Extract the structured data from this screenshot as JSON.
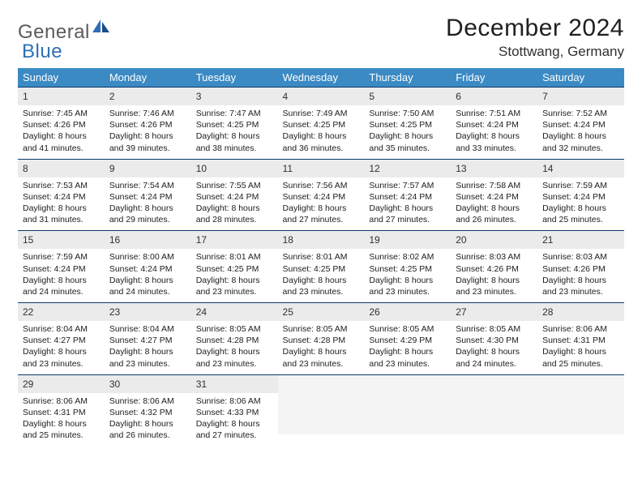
{
  "logo": {
    "part1": "General",
    "part2": "Blue"
  },
  "title": "December 2024",
  "location": "Stottwang, Germany",
  "day_headers": [
    "Sunday",
    "Monday",
    "Tuesday",
    "Wednesday",
    "Thursday",
    "Friday",
    "Saturday"
  ],
  "colors": {
    "header_bg": "#3b8ac4",
    "header_text": "#ffffff",
    "rule": "#0a3a6a",
    "daynum_bg": "#ebebeb",
    "empty_bg": "#f4f4f4",
    "logo_gray": "#5a5a5a",
    "logo_blue": "#2e6fb5"
  },
  "weeks": [
    [
      {
        "n": "1",
        "sr": "7:45 AM",
        "ss": "4:26 PM",
        "dl": "8 hours and 41 minutes."
      },
      {
        "n": "2",
        "sr": "7:46 AM",
        "ss": "4:26 PM",
        "dl": "8 hours and 39 minutes."
      },
      {
        "n": "3",
        "sr": "7:47 AM",
        "ss": "4:25 PM",
        "dl": "8 hours and 38 minutes."
      },
      {
        "n": "4",
        "sr": "7:49 AM",
        "ss": "4:25 PM",
        "dl": "8 hours and 36 minutes."
      },
      {
        "n": "5",
        "sr": "7:50 AM",
        "ss": "4:25 PM",
        "dl": "8 hours and 35 minutes."
      },
      {
        "n": "6",
        "sr": "7:51 AM",
        "ss": "4:24 PM",
        "dl": "8 hours and 33 minutes."
      },
      {
        "n": "7",
        "sr": "7:52 AM",
        "ss": "4:24 PM",
        "dl": "8 hours and 32 minutes."
      }
    ],
    [
      {
        "n": "8",
        "sr": "7:53 AM",
        "ss": "4:24 PM",
        "dl": "8 hours and 31 minutes."
      },
      {
        "n": "9",
        "sr": "7:54 AM",
        "ss": "4:24 PM",
        "dl": "8 hours and 29 minutes."
      },
      {
        "n": "10",
        "sr": "7:55 AM",
        "ss": "4:24 PM",
        "dl": "8 hours and 28 minutes."
      },
      {
        "n": "11",
        "sr": "7:56 AM",
        "ss": "4:24 PM",
        "dl": "8 hours and 27 minutes."
      },
      {
        "n": "12",
        "sr": "7:57 AM",
        "ss": "4:24 PM",
        "dl": "8 hours and 27 minutes."
      },
      {
        "n": "13",
        "sr": "7:58 AM",
        "ss": "4:24 PM",
        "dl": "8 hours and 26 minutes."
      },
      {
        "n": "14",
        "sr": "7:59 AM",
        "ss": "4:24 PM",
        "dl": "8 hours and 25 minutes."
      }
    ],
    [
      {
        "n": "15",
        "sr": "7:59 AM",
        "ss": "4:24 PM",
        "dl": "8 hours and 24 minutes."
      },
      {
        "n": "16",
        "sr": "8:00 AM",
        "ss": "4:24 PM",
        "dl": "8 hours and 24 minutes."
      },
      {
        "n": "17",
        "sr": "8:01 AM",
        "ss": "4:25 PM",
        "dl": "8 hours and 23 minutes."
      },
      {
        "n": "18",
        "sr": "8:01 AM",
        "ss": "4:25 PM",
        "dl": "8 hours and 23 minutes."
      },
      {
        "n": "19",
        "sr": "8:02 AM",
        "ss": "4:25 PM",
        "dl": "8 hours and 23 minutes."
      },
      {
        "n": "20",
        "sr": "8:03 AM",
        "ss": "4:26 PM",
        "dl": "8 hours and 23 minutes."
      },
      {
        "n": "21",
        "sr": "8:03 AM",
        "ss": "4:26 PM",
        "dl": "8 hours and 23 minutes."
      }
    ],
    [
      {
        "n": "22",
        "sr": "8:04 AM",
        "ss": "4:27 PM",
        "dl": "8 hours and 23 minutes."
      },
      {
        "n": "23",
        "sr": "8:04 AM",
        "ss": "4:27 PM",
        "dl": "8 hours and 23 minutes."
      },
      {
        "n": "24",
        "sr": "8:05 AM",
        "ss": "4:28 PM",
        "dl": "8 hours and 23 minutes."
      },
      {
        "n": "25",
        "sr": "8:05 AM",
        "ss": "4:28 PM",
        "dl": "8 hours and 23 minutes."
      },
      {
        "n": "26",
        "sr": "8:05 AM",
        "ss": "4:29 PM",
        "dl": "8 hours and 23 minutes."
      },
      {
        "n": "27",
        "sr": "8:05 AM",
        "ss": "4:30 PM",
        "dl": "8 hours and 24 minutes."
      },
      {
        "n": "28",
        "sr": "8:06 AM",
        "ss": "4:31 PM",
        "dl": "8 hours and 25 minutes."
      }
    ],
    [
      {
        "n": "29",
        "sr": "8:06 AM",
        "ss": "4:31 PM",
        "dl": "8 hours and 25 minutes."
      },
      {
        "n": "30",
        "sr": "8:06 AM",
        "ss": "4:32 PM",
        "dl": "8 hours and 26 minutes."
      },
      {
        "n": "31",
        "sr": "8:06 AM",
        "ss": "4:33 PM",
        "dl": "8 hours and 27 minutes."
      },
      null,
      null,
      null,
      null
    ]
  ],
  "labels": {
    "sunrise": "Sunrise: ",
    "sunset": "Sunset: ",
    "daylight": "Daylight: "
  }
}
